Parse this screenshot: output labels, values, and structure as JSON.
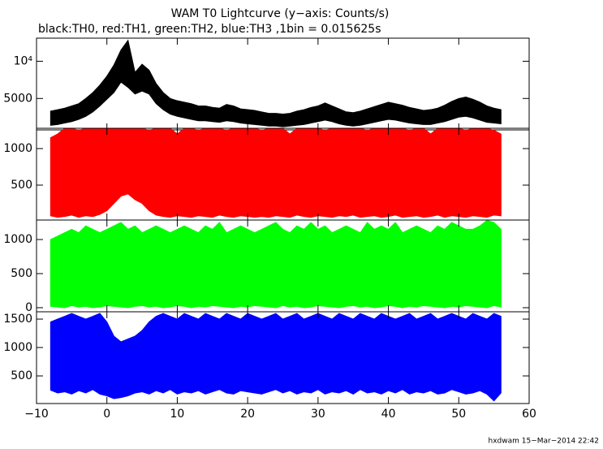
{
  "chart_data": {
    "type": "stacked-area",
    "title": "WAM T0 Lightcurve (y−axis: Counts/s)",
    "subtitle": "black:TH0, red:TH1, green:TH2, blue:TH3 ,1bin = 0.015625s",
    "footer": "hxdwam 15−Mar−2014 22:42",
    "xlim": [
      -10,
      60
    ],
    "xticks": [
      {
        "value": -10,
        "label": "−10"
      },
      0,
      10,
      20,
      30,
      40,
      50,
      60
    ],
    "x": [
      -8,
      -7,
      -6,
      -5,
      -4,
      -3,
      -2,
      -1,
      0,
      1,
      2,
      3,
      4,
      5,
      6,
      7,
      8,
      9,
      10,
      11,
      12,
      13,
      14,
      15,
      16,
      17,
      18,
      19,
      20,
      21,
      22,
      23,
      24,
      25,
      26,
      27,
      28,
      29,
      30,
      31,
      32,
      33,
      34,
      35,
      36,
      37,
      38,
      39,
      40,
      41,
      42,
      43,
      44,
      45,
      46,
      47,
      48,
      49,
      50,
      51,
      52,
      53,
      54,
      55,
      56
    ],
    "panels": [
      {
        "color": "#000000",
        "ylim": [
          780,
          13100
        ],
        "yticks": [
          5000,
          {
            "value": 10000,
            "label": "10⁴"
          }
        ],
        "high": [
          3300,
          3500,
          3700,
          4000,
          4300,
          5000,
          5800,
          6800,
          8000,
          9500,
          11500,
          12800,
          8500,
          9600,
          8800,
          7000,
          5800,
          5000,
          4700,
          4500,
          4300,
          4000,
          4000,
          3800,
          3700,
          4200,
          4000,
          3600,
          3500,
          3400,
          3200,
          3000,
          3000,
          2900,
          3000,
          3300,
          3500,
          3800,
          4000,
          4400,
          4000,
          3600,
          3200,
          3100,
          3300,
          3600,
          3900,
          4200,
          4500,
          4300,
          4100,
          3800,
          3600,
          3400,
          3500,
          3700,
          4100,
          4600,
          5000,
          5200,
          4900,
          4500,
          4000,
          3700,
          3500
        ],
        "low": [
          1400,
          1500,
          1700,
          1900,
          2200,
          2600,
          3200,
          4000,
          4900,
          5800,
          7200,
          6500,
          5600,
          6000,
          5600,
          4300,
          3500,
          2900,
          2600,
          2400,
          2200,
          2000,
          2000,
          1900,
          1800,
          2000,
          1900,
          1700,
          1600,
          1500,
          1400,
          1300,
          1300,
          1200,
          1300,
          1400,
          1500,
          1700,
          1900,
          2100,
          1900,
          1600,
          1400,
          1300,
          1400,
          1600,
          1800,
          2000,
          2200,
          2100,
          1900,
          1700,
          1600,
          1500,
          1500,
          1700,
          1900,
          2200,
          2500,
          2600,
          2400,
          2100,
          1800,
          1700,
          1600
        ]
      },
      {
        "color": "#ff0000",
        "ylim": [
          22,
          1278
        ],
        "yticks": [
          500,
          1000
        ],
        "high": [
          1150,
          1200,
          1278,
          1278,
          1250,
          1278,
          1278,
          1278,
          1278,
          1278,
          1278,
          1278,
          1278,
          1278,
          1250,
          1278,
          1278,
          1278,
          1200,
          1278,
          1278,
          1250,
          1278,
          1278,
          1278,
          1250,
          1278,
          1278,
          1278,
          1278,
          1250,
          1278,
          1278,
          1278,
          1200,
          1278,
          1278,
          1278,
          1278,
          1250,
          1278,
          1278,
          1278,
          1278,
          1278,
          1250,
          1278,
          1278,
          1278,
          1278,
          1278,
          1250,
          1278,
          1278,
          1200,
          1278,
          1278,
          1278,
          1278,
          1250,
          1278,
          1278,
          1278,
          1250,
          1200
        ],
        "low": [
          80,
          60,
          70,
          90,
          60,
          80,
          70,
          100,
          150,
          250,
          350,
          380,
          300,
          250,
          150,
          90,
          70,
          60,
          80,
          70,
          60,
          80,
          70,
          60,
          90,
          70,
          60,
          80,
          70,
          60,
          70,
          60,
          80,
          70,
          60,
          90,
          70,
          60,
          80,
          70,
          60,
          80,
          70,
          90,
          60,
          70,
          80,
          60,
          70,
          90,
          60,
          70,
          80,
          60,
          70,
          90,
          60,
          80,
          70,
          60,
          80,
          70,
          60,
          90,
          80
        ]
      },
      {
        "color": "#00ff00",
        "ylim": [
          -60,
          1286
        ],
        "yticks": [
          0,
          500,
          1000
        ],
        "high": [
          1000,
          1050,
          1100,
          1150,
          1100,
          1200,
          1150,
          1100,
          1150,
          1200,
          1250,
          1150,
          1200,
          1100,
          1150,
          1200,
          1150,
          1100,
          1150,
          1200,
          1150,
          1100,
          1200,
          1150,
          1250,
          1100,
          1150,
          1200,
          1150,
          1100,
          1150,
          1200,
          1250,
          1150,
          1100,
          1200,
          1150,
          1250,
          1150,
          1200,
          1100,
          1150,
          1200,
          1150,
          1100,
          1250,
          1150,
          1200,
          1150,
          1250,
          1100,
          1150,
          1200,
          1150,
          1100,
          1200,
          1150,
          1250,
          1200,
          1150,
          1150,
          1200,
          1280,
          1250,
          1150
        ],
        "low": [
          20,
          10,
          0,
          30,
          10,
          20,
          0,
          10,
          30,
          20,
          10,
          0,
          20,
          30,
          10,
          20,
          0,
          10,
          30,
          20,
          0,
          20,
          10,
          30,
          20,
          10,
          0,
          20,
          10,
          30,
          20,
          10,
          0,
          30,
          10,
          20,
          0,
          10,
          30,
          20,
          10,
          0,
          20,
          30,
          10,
          20,
          0,
          10,
          30,
          20,
          0,
          20,
          10,
          30,
          20,
          10,
          0,
          20,
          10,
          30,
          20,
          10,
          0,
          30,
          10
        ]
      },
      {
        "color": "#0000ff",
        "ylim": [
          14,
          1629
        ],
        "yticks": [
          500,
          1000,
          1500
        ],
        "high": [
          1450,
          1500,
          1550,
          1600,
          1550,
          1500,
          1550,
          1600,
          1450,
          1200,
          1100,
          1150,
          1200,
          1300,
          1450,
          1550,
          1600,
          1550,
          1500,
          1600,
          1550,
          1500,
          1600,
          1550,
          1500,
          1600,
          1550,
          1500,
          1600,
          1550,
          1500,
          1550,
          1600,
          1500,
          1550,
          1600,
          1500,
          1550,
          1600,
          1550,
          1500,
          1600,
          1550,
          1500,
          1600,
          1550,
          1500,
          1600,
          1550,
          1500,
          1550,
          1600,
          1500,
          1550,
          1600,
          1500,
          1550,
          1600,
          1550,
          1500,
          1600,
          1550,
          1500,
          1600,
          1550
        ],
        "low": [
          250,
          200,
          220,
          180,
          240,
          200,
          260,
          180,
          150,
          100,
          120,
          150,
          200,
          220,
          180,
          240,
          200,
          260,
          180,
          220,
          200,
          240,
          180,
          220,
          260,
          200,
          180,
          240,
          220,
          200,
          180,
          220,
          260,
          200,
          240,
          180,
          220,
          200,
          260,
          180,
          220,
          200,
          240,
          180,
          260,
          200,
          220,
          180,
          240,
          200,
          260,
          180,
          220,
          200,
          240,
          180,
          200,
          260,
          220,
          180,
          200,
          240,
          180,
          60,
          200
        ]
      }
    ]
  }
}
